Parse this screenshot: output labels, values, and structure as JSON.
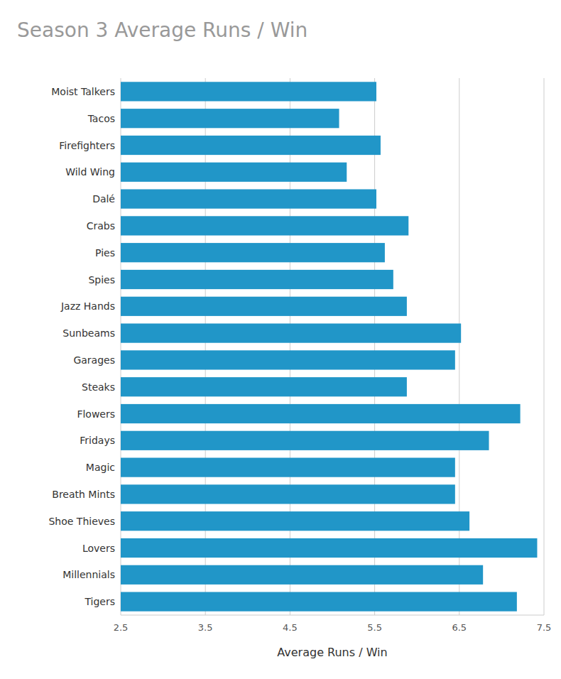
{
  "chart_data": {
    "type": "bar",
    "orientation": "horizontal",
    "title": "Season 3 Average Runs / Win",
    "xlabel": "Average Runs / Win",
    "categories": [
      "Moist Talkers",
      "Tacos",
      "Firefighters",
      "Wild Wing",
      "Dalé",
      "Crabs",
      "Pies",
      "Spies",
      "Jazz Hands",
      "Sunbeams",
      "Garages",
      "Steaks",
      "Flowers",
      "Fridays",
      "Magic",
      "Breath Mints",
      "Shoe Thieves",
      "Lovers",
      "Millennials",
      "Tigers"
    ],
    "values": [
      5.52,
      5.08,
      5.57,
      5.17,
      5.52,
      5.9,
      5.62,
      5.72,
      5.88,
      6.52,
      6.45,
      5.88,
      7.22,
      6.85,
      6.45,
      6.45,
      6.62,
      7.42,
      6.78,
      7.18
    ],
    "color": "#2196c8",
    "xlim": [
      2.5,
      7.5
    ],
    "xticks": [
      2.5,
      3.5,
      4.5,
      5.5,
      6.5,
      7.5
    ],
    "grid": true
  }
}
